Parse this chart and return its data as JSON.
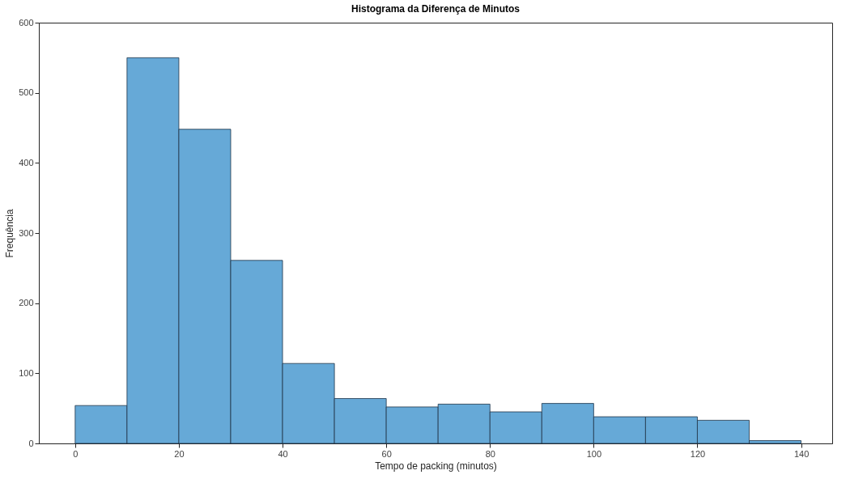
{
  "chart_data": {
    "type": "histogram",
    "title": "Histograma da Diferença de Minutos",
    "xlabel": "Tempo de packing (minutos)",
    "ylabel": "Frequência",
    "bins": [
      0,
      10,
      20,
      30,
      40,
      50,
      60,
      70,
      80,
      90,
      100,
      110,
      120,
      130,
      140
    ],
    "values": [
      54,
      550,
      448,
      261,
      114,
      64,
      52,
      56,
      45,
      57,
      38,
      38,
      33,
      4
    ],
    "color": "#66a9d7",
    "xlim": [
      -7,
      146
    ],
    "xticks": [
      0,
      20,
      40,
      60,
      80,
      100,
      120,
      140
    ],
    "ylim": [
      0,
      600
    ],
    "yticks": [
      0,
      100,
      200,
      300,
      400,
      500,
      600
    ],
    "grid": false
  }
}
